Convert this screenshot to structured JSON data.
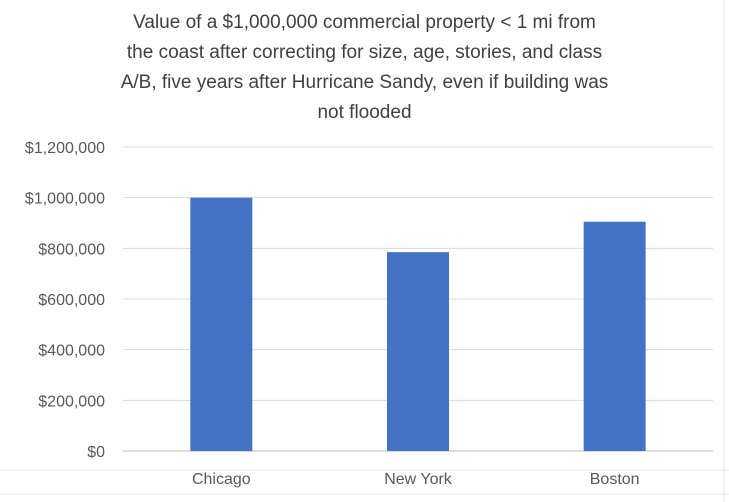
{
  "chart_data": {
    "type": "bar",
    "title_lines": [
      "Value of a $1,000,000 commercial property < 1 mi from",
      "the coast after correcting for size, age, stories, and class",
      "A/B, five years after Hurricane Sandy, even if building was",
      "not flooded"
    ],
    "categories": [
      "Chicago",
      "New York",
      "Boston"
    ],
    "values": [
      1000000,
      785000,
      905000
    ],
    "ylim": [
      0,
      1200000
    ],
    "yticks": [
      0,
      200000,
      400000,
      600000,
      800000,
      1000000,
      1200000
    ],
    "ytick_labels": [
      "$0",
      "$200,000",
      "$400,000",
      "$600,000",
      "$800,000",
      "$1,000,000",
      "$1,200,000"
    ],
    "xlabel": "",
    "ylabel": "",
    "grid": true,
    "bar_color": "#4472C4",
    "grid_color": "#d9d9d9"
  }
}
